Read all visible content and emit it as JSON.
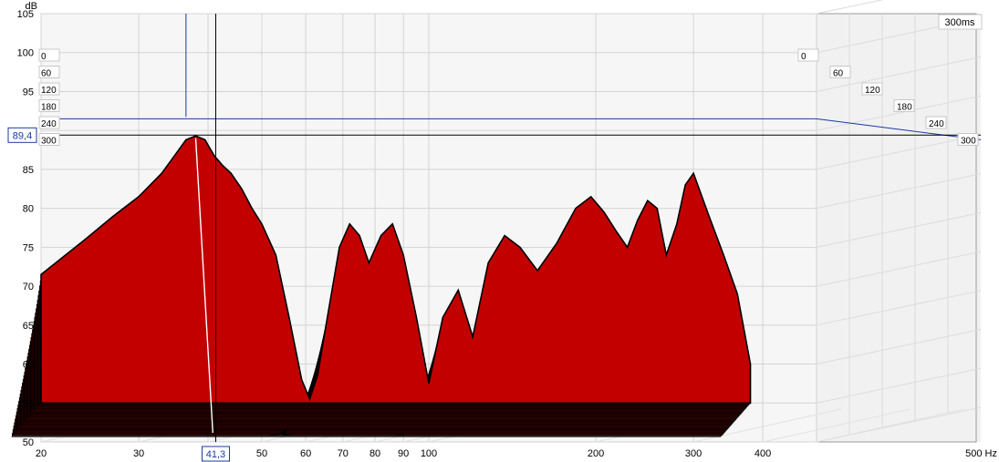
{
  "chart_data": {
    "type": "area",
    "title": "",
    "xlabel": "Hz",
    "ylabel": "dB",
    "x_scale": "log",
    "xlim": [
      20,
      500
    ],
    "ylim": [
      50,
      105
    ],
    "x_ticks": [
      20,
      30,
      40,
      50,
      60,
      70,
      80,
      90,
      100,
      200,
      300,
      400,
      500
    ],
    "x_tick_labels": [
      "20",
      "30",
      "",
      "50",
      "60",
      "70",
      "80",
      "90",
      "100",
      "200",
      "300",
      "400",
      "500 Hz"
    ],
    "y_ticks": [
      50,
      55,
      60,
      65,
      70,
      75,
      80,
      85,
      90,
      95,
      100,
      105
    ],
    "y_tick_labels": [
      "50",
      "55",
      "60",
      "65",
      "70",
      "75",
      "80",
      "85",
      "",
      "95",
      "100",
      "105"
    ],
    "time_axis_label": "300ms",
    "time_slices_ms": [
      0,
      60,
      120,
      180,
      240,
      300
    ],
    "time_labels": [
      "0",
      "60",
      "120",
      "180",
      "240",
      "300"
    ],
    "num_slices": 42,
    "grid": true,
    "fill_color": "#c20000",
    "line_color": "#000000",
    "cursor": {
      "x_value": "41,3",
      "y_value": "89,4",
      "cursor_color": "#1a3aa0"
    },
    "front_slice": {
      "x": [
        20,
        24,
        27,
        30,
        33,
        35,
        36.5,
        38,
        39.5,
        41,
        42.5,
        44,
        46,
        48,
        50,
        53,
        56,
        59,
        61,
        63,
        66,
        69,
        72,
        75,
        78,
        82,
        86,
        90,
        95,
        100,
        106,
        113,
        120,
        128,
        137,
        146,
        157,
        170,
        184,
        196,
        207,
        218,
        228,
        238,
        248,
        258,
        268,
        280,
        290,
        300,
        320,
        340,
        360,
        380
      ],
      "y": [
        71.5,
        76,
        79,
        81.5,
        84.5,
        87,
        88.8,
        89.3,
        88.8,
        86.8,
        85.5,
        84.5,
        82.5,
        80,
        78,
        74,
        66,
        58,
        55.5,
        58.5,
        67,
        75,
        78,
        76.5,
        73,
        76.5,
        78,
        74,
        66,
        57.5,
        66,
        69.5,
        63.5,
        73,
        76.5,
        75,
        72,
        75.5,
        80,
        81.5,
        79.5,
        77,
        75,
        78.5,
        81,
        80,
        74,
        78,
        83,
        84.5,
        79,
        74,
        69,
        60
      ],
      "note": ""
    }
  }
}
